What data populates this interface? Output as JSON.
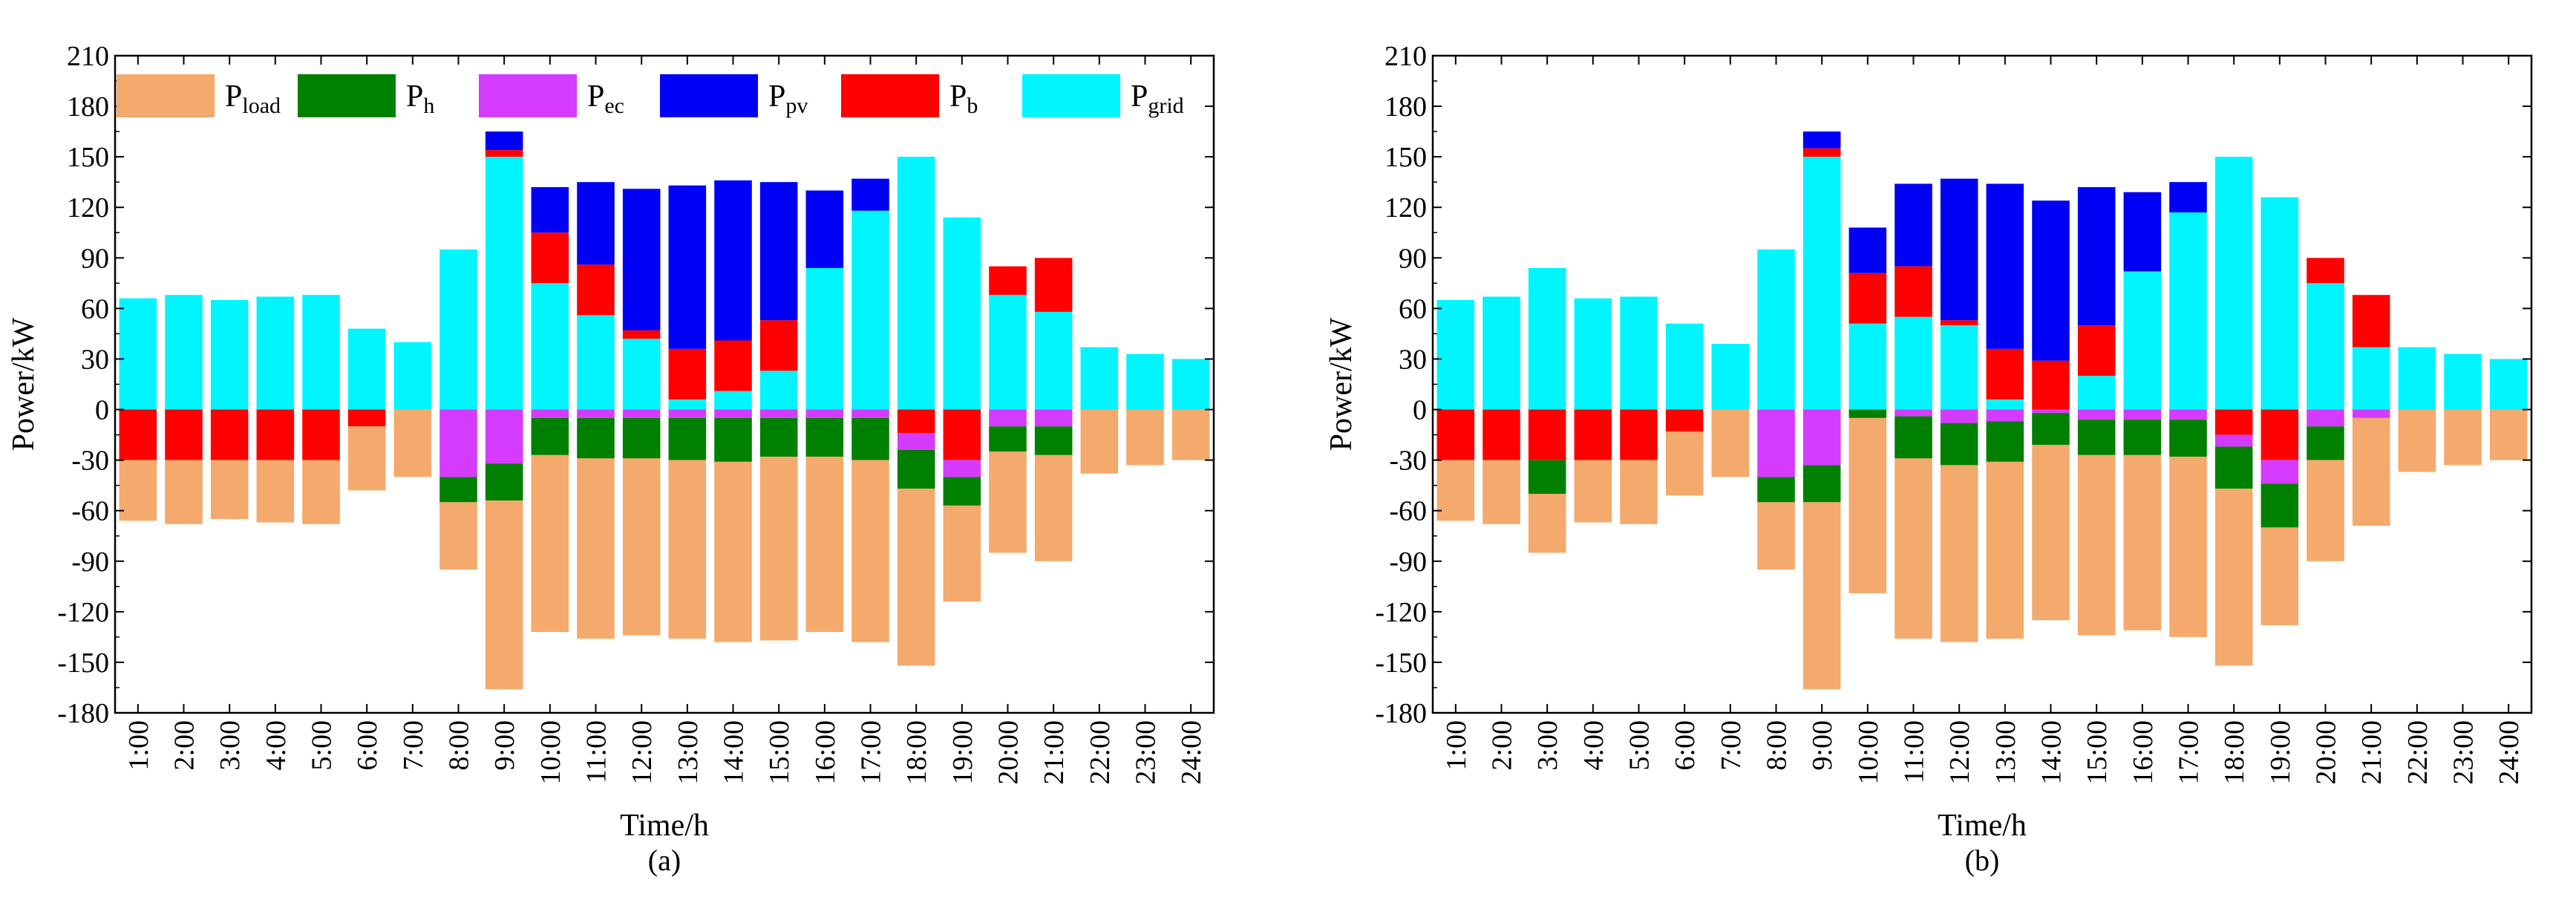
{
  "colors": {
    "load": "#F4A96D",
    "h": "#008000",
    "ec": "#D53BFF",
    "pv": "#0000F5",
    "b": "#FF0000",
    "grid": "#00F5FF"
  },
  "legend": [
    {
      "key": "load",
      "base": "P",
      "sub": "load"
    },
    {
      "key": "h",
      "base": "P",
      "sub": "h"
    },
    {
      "key": "ec",
      "base": "P",
      "sub": "ec"
    },
    {
      "key": "pv",
      "base": "P",
      "sub": "pv"
    },
    {
      "key": "b",
      "base": "P",
      "sub": "b"
    },
    {
      "key": "grid",
      "base": "P",
      "sub": "grid"
    }
  ],
  "chart_data": [
    {
      "type": "bar",
      "stacked": true,
      "caption": "(a)",
      "xlabel": "Time/h",
      "ylabel": "Power/kW",
      "ylim": [
        -180,
        210
      ],
      "yticks": [
        210,
        180,
        150,
        120,
        90,
        60,
        30,
        0,
        -30,
        -60,
        -90,
        -120,
        -150,
        -180
      ],
      "grid": false,
      "legend_position": "top-left",
      "categories": [
        "1:00",
        "2:00",
        "3:00",
        "4:00",
        "5:00",
        "6:00",
        "7:00",
        "8:00",
        "9:00",
        "10:00",
        "11:00",
        "12:00",
        "13:00",
        "14:00",
        "15:00",
        "16:00",
        "17:00",
        "18:00",
        "19:00",
        "20:00",
        "21:00",
        "22:00",
        "23:00",
        "24:00"
      ],
      "series": [
        {
          "name": "P_grid",
          "key": "grid",
          "values": [
            66,
            68,
            65,
            67,
            68,
            48,
            40,
            95,
            150,
            75,
            56,
            42,
            6,
            11,
            23,
            84,
            118,
            150,
            114,
            68,
            58,
            37,
            33,
            30
          ]
        },
        {
          "name": "P_b",
          "key": "b",
          "values": [
            0,
            0,
            0,
            0,
            0,
            0,
            0,
            0,
            4,
            30,
            30,
            5,
            30,
            30,
            30,
            0,
            0,
            0,
            0,
            17,
            32,
            0,
            0,
            0
          ]
        },
        {
          "name": "P_pv",
          "key": "pv",
          "values": [
            0,
            0,
            0,
            0,
            0,
            0,
            0,
            0,
            11,
            27,
            49,
            84,
            97,
            95,
            82,
            46,
            19,
            0,
            0,
            0,
            0,
            0,
            0,
            0
          ]
        },
        {
          "name": "P_b",
          "key": "b",
          "values": [
            -30,
            -30,
            -30,
            -30,
            -30,
            -10,
            0,
            0,
            0,
            0,
            0,
            0,
            0,
            0,
            0,
            0,
            0,
            -14,
            -30,
            0,
            0,
            0,
            0,
            0
          ]
        },
        {
          "name": "P_ec",
          "key": "ec",
          "values": [
            0,
            0,
            0,
            0,
            0,
            0,
            0,
            -40,
            -32,
            -5,
            -5,
            -5,
            -5,
            -5,
            -5,
            -5,
            -5,
            -10,
            -10,
            -10,
            -10,
            0,
            0,
            0
          ]
        },
        {
          "name": "P_h",
          "key": "h",
          "values": [
            0,
            0,
            0,
            0,
            0,
            0,
            0,
            -15,
            -22,
            -22,
            -24,
            -24,
            -25,
            -26,
            -23,
            -23,
            -25,
            -23,
            -17,
            -15,
            -17,
            0,
            0,
            0
          ]
        },
        {
          "name": "P_load",
          "key": "load",
          "values": [
            -36,
            -38,
            -35,
            -37,
            -38,
            -38,
            -40,
            -40,
            -112,
            -105,
            -107,
            -105,
            -106,
            -107,
            -109,
            -104,
            -108,
            -105,
            -57,
            -60,
            -63,
            -38,
            -33,
            -30
          ]
        }
      ]
    },
    {
      "type": "bar",
      "stacked": true,
      "caption": "(b)",
      "xlabel": "Time/h",
      "ylabel": "Power/kW",
      "ylim": [
        -180,
        210
      ],
      "yticks": [
        210,
        180,
        150,
        120,
        90,
        60,
        30,
        0,
        -30,
        -60,
        -90,
        -120,
        -150,
        -180
      ],
      "grid": false,
      "legend_position": "none",
      "categories": [
        "1:00",
        "2:00",
        "3:00",
        "4:00",
        "5:00",
        "6:00",
        "7:00",
        "8:00",
        "9:00",
        "10:00",
        "11:00",
        "12:00",
        "13:00",
        "14:00",
        "15:00",
        "16:00",
        "17:00",
        "18:00",
        "19:00",
        "20:00",
        "21:00",
        "22:00",
        "23:00",
        "24:00"
      ],
      "series": [
        {
          "name": "P_grid",
          "key": "grid",
          "values": [
            65,
            67,
            84,
            66,
            67,
            51,
            39,
            95,
            150,
            51,
            55,
            50,
            6,
            0,
            20,
            82,
            117,
            150,
            126,
            75,
            37,
            37,
            33,
            30
          ]
        },
        {
          "name": "P_b",
          "key": "b",
          "values": [
            0,
            0,
            0,
            0,
            0,
            0,
            0,
            0,
            5,
            30,
            30,
            3,
            30,
            29,
            30,
            0,
            0,
            0,
            0,
            15,
            31,
            0,
            0,
            0
          ]
        },
        {
          "name": "P_pv",
          "key": "pv",
          "values": [
            0,
            0,
            0,
            0,
            0,
            0,
            0,
            0,
            10,
            27,
            49,
            84,
            98,
            95,
            82,
            47,
            18,
            0,
            0,
            0,
            0,
            0,
            0,
            0
          ]
        },
        {
          "name": "P_b",
          "key": "b",
          "values": [
            -30,
            -30,
            -30,
            -30,
            -30,
            -13,
            0,
            0,
            0,
            0,
            0,
            0,
            0,
            0,
            0,
            0,
            0,
            -15,
            -30,
            0,
            0,
            0,
            0,
            0
          ]
        },
        {
          "name": "P_ec",
          "key": "ec",
          "values": [
            0,
            0,
            0,
            0,
            0,
            0,
            0,
            -40,
            -33,
            0,
            -4,
            -8,
            -7,
            -2,
            -6,
            -6,
            -6,
            -7,
            -14,
            -10,
            -5,
            0,
            0,
            0
          ]
        },
        {
          "name": "P_h",
          "key": "h",
          "values": [
            0,
            0,
            -20,
            0,
            0,
            0,
            0,
            -15,
            -22,
            -5,
            -25,
            -25,
            -24,
            -19,
            -21,
            -21,
            -22,
            -25,
            -26,
            -20,
            0,
            0,
            0,
            0
          ]
        },
        {
          "name": "P_load",
          "key": "load",
          "values": [
            -36,
            -38,
            -35,
            -37,
            -38,
            -38,
            -40,
            -40,
            -111,
            -104,
            -107,
            -105,
            -105,
            -104,
            -107,
            -104,
            -107,
            -105,
            -58,
            -60,
            -64,
            -37,
            -33,
            -30
          ]
        }
      ]
    }
  ]
}
